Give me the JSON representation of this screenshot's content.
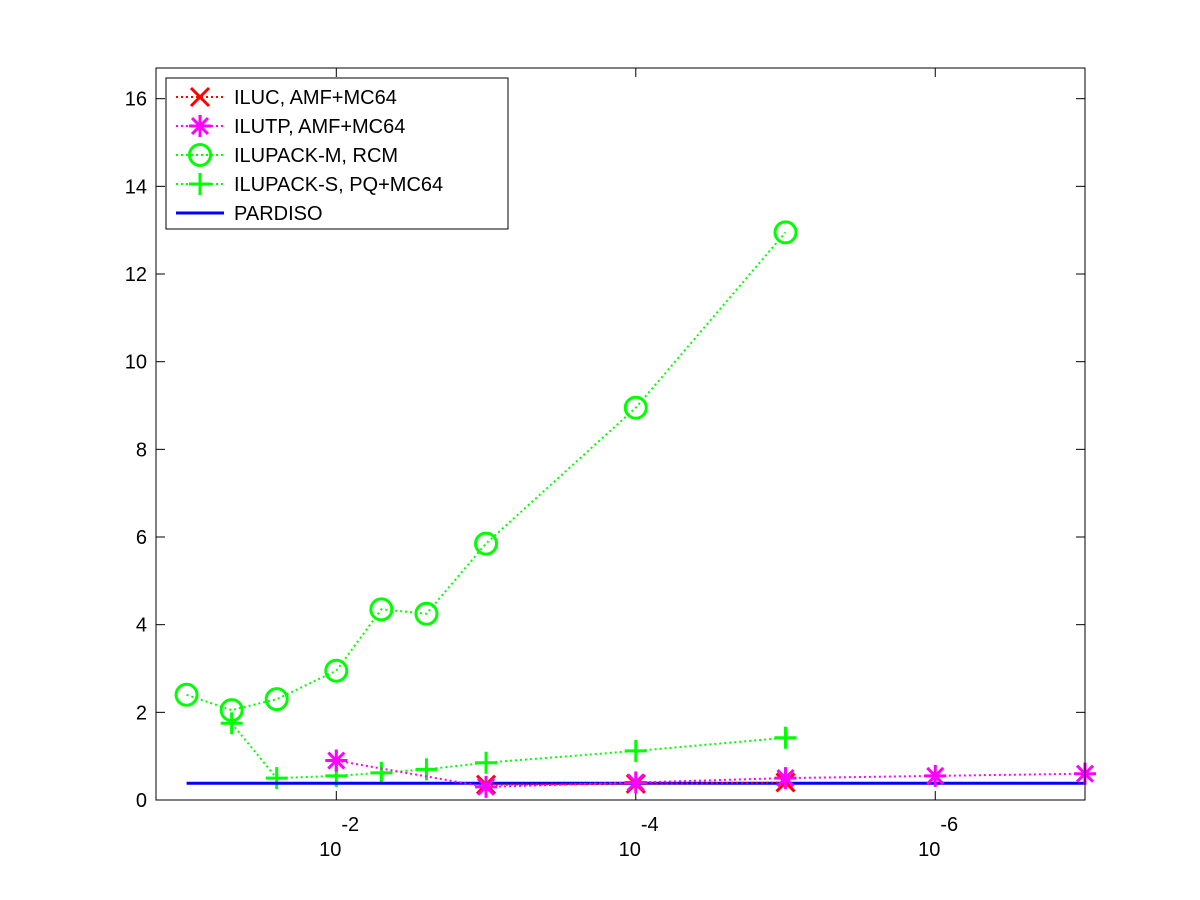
{
  "chart_data": {
    "type": "line",
    "title": "",
    "xlabel": "",
    "ylabel": "",
    "x_scale": "log",
    "x_direction": "reversed",
    "xlim": [
      0.16,
      1e-07
    ],
    "ylim": [
      0,
      16.7
    ],
    "grid": false,
    "legend_position": "top-left",
    "x_ticks": [
      {
        "value": 0.01,
        "base": "10",
        "exponent": "-2"
      },
      {
        "value": 0.0001,
        "base": "10",
        "exponent": "-4"
      },
      {
        "value": 1e-06,
        "base": "10",
        "exponent": "-6"
      }
    ],
    "y_ticks": [
      {
        "value": 0,
        "label": "0"
      },
      {
        "value": 2,
        "label": "2"
      },
      {
        "value": 4,
        "label": "4"
      },
      {
        "value": 6,
        "label": "6"
      },
      {
        "value": 8,
        "label": "8"
      },
      {
        "value": 10,
        "label": "10"
      },
      {
        "value": 12,
        "label": "12"
      },
      {
        "value": 14,
        "label": "14"
      },
      {
        "value": 16,
        "label": "16"
      }
    ],
    "series": [
      {
        "name": "ILUC, AMF+MC64",
        "color": "#ff0000",
        "marker": "x",
        "line": "dotted",
        "points": [
          [
            0.001,
            0.35
          ],
          [
            0.0001,
            0.37
          ],
          [
            1e-05,
            0.4
          ]
        ]
      },
      {
        "name": "ILUTP, AMF+MC64",
        "color": "#ff00ff",
        "marker": "asterisk",
        "line": "dotted",
        "points": [
          [
            0.01,
            0.9
          ],
          [
            0.001,
            0.3
          ],
          [
            0.0001,
            0.4
          ],
          [
            1e-05,
            0.5
          ],
          [
            1e-06,
            0.55
          ],
          [
            1e-07,
            0.6
          ]
        ]
      },
      {
        "name": "ILUPACK-M, RCM",
        "color": "#00ff00",
        "marker": "circle",
        "line": "dotted",
        "points": [
          [
            0.1,
            2.4
          ],
          [
            0.05,
            2.05
          ],
          [
            0.025,
            2.3
          ],
          [
            0.01,
            2.95
          ],
          [
            0.005,
            4.35
          ],
          [
            0.0025,
            4.25
          ],
          [
            0.001,
            5.85
          ],
          [
            0.0001,
            8.95
          ],
          [
            1e-05,
            12.95
          ]
        ]
      },
      {
        "name": "ILUPACK-S, PQ+MC64",
        "color": "#00ff00",
        "marker": "plus",
        "line": "dotted",
        "points": [
          [
            0.05,
            1.75
          ],
          [
            0.025,
            0.5
          ],
          [
            0.01,
            0.55
          ],
          [
            0.005,
            0.62
          ],
          [
            0.0025,
            0.7
          ],
          [
            0.001,
            0.85
          ],
          [
            0.0001,
            1.12
          ],
          [
            1e-05,
            1.42
          ]
        ]
      },
      {
        "name": "PARDISO",
        "color": "#0000ff",
        "marker": "none",
        "line": "solid",
        "points": [
          [
            0.1,
            0.38
          ],
          [
            1e-07,
            0.38
          ]
        ]
      }
    ]
  }
}
